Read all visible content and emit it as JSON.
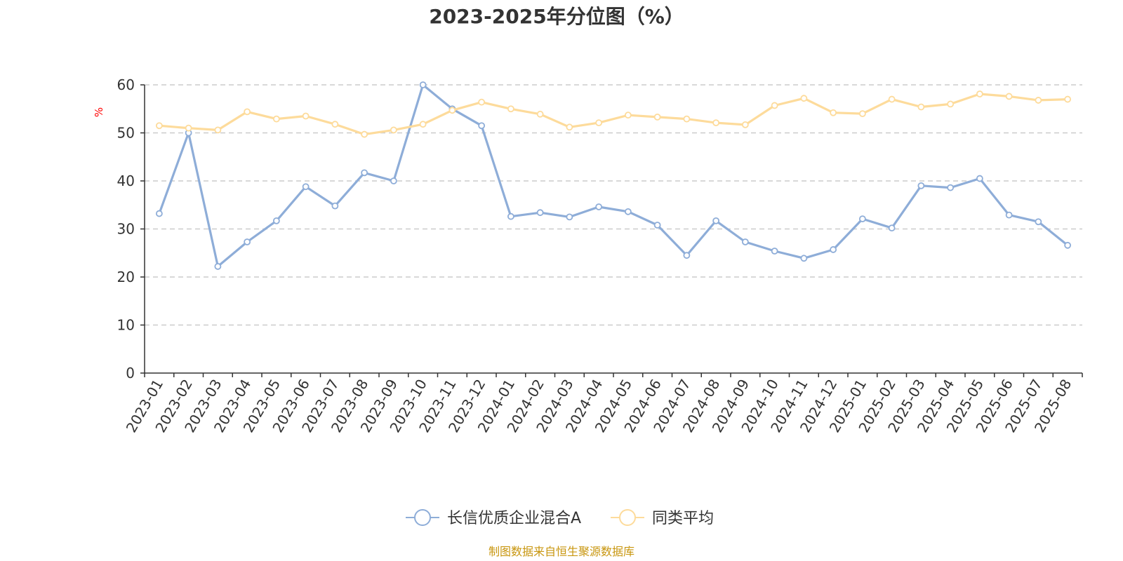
{
  "chart_data": {
    "type": "line",
    "title": "2023-2025年分位图（%）",
    "ylabel": "%",
    "xlabel": "",
    "ylim": [
      0,
      60
    ],
    "yticks": [
      0,
      10,
      20,
      30,
      40,
      50,
      60
    ],
    "grid": true,
    "legend_position": "bottom",
    "categories": [
      "2023-01",
      "2023-02",
      "2023-03",
      "2023-04",
      "2023-05",
      "2023-06",
      "2023-07",
      "2023-08",
      "2023-09",
      "2023-10",
      "2023-11",
      "2023-12",
      "2024-01",
      "2024-02",
      "2024-03",
      "2024-04",
      "2024-05",
      "2024-06",
      "2024-07",
      "2024-08",
      "2024-09",
      "2024-10",
      "2024-11",
      "2024-12",
      "2025-01",
      "2025-02",
      "2025-03",
      "2025-04",
      "2025-05",
      "2025-06",
      "2025-07",
      "2025-08"
    ],
    "series": [
      {
        "name": "长信优质企业混合A",
        "color": "#8eadd8",
        "values": [
          33.2,
          50.0,
          22.2,
          27.3,
          31.7,
          38.8,
          34.8,
          41.7,
          40.0,
          60.0,
          55.0,
          51.5,
          32.6,
          33.4,
          32.5,
          34.6,
          33.6,
          30.8,
          24.5,
          31.7,
          27.3,
          25.4,
          23.9,
          25.7,
          32.1,
          30.2,
          39.0,
          38.6,
          40.5,
          32.9,
          31.5,
          26.6
        ]
      },
      {
        "name": "同类平均",
        "color": "#fddb9b",
        "values": [
          51.5,
          51.0,
          50.6,
          54.4,
          52.9,
          53.5,
          51.8,
          49.7,
          50.6,
          51.8,
          54.7,
          56.4,
          55.0,
          53.9,
          51.2,
          52.1,
          53.7,
          53.3,
          52.9,
          52.1,
          51.7,
          55.7,
          57.2,
          54.2,
          54.0,
          57.0,
          55.4,
          56.0,
          58.1,
          57.6,
          56.8,
          57.0
        ]
      }
    ]
  },
  "source": "制图数据来自恒生聚源数据库",
  "colors": {
    "axis": "#333333",
    "grid": "#cccccc",
    "unit_label": "#ff0000",
    "source_text": "#c8960f"
  }
}
